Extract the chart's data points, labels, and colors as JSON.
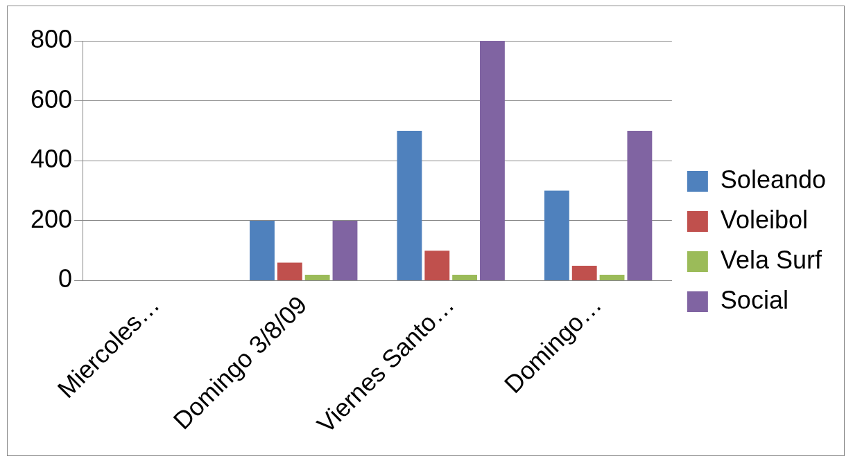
{
  "chart_data": {
    "type": "bar",
    "categories": [
      "Miercoles…",
      "Domingo 3/8/09",
      "Viernes Santo…",
      "Domingo…"
    ],
    "series": [
      {
        "name": "Soleando",
        "color": "#4f81bd",
        "values": [
          0,
          200,
          500,
          300
        ]
      },
      {
        "name": "Voleibol",
        "color": "#c0504d",
        "values": [
          0,
          60,
          100,
          50
        ]
      },
      {
        "name": "Vela Surf",
        "color": "#9bbb59",
        "values": [
          0,
          20,
          20,
          20
        ]
      },
      {
        "name": "Social",
        "color": "#8064a2",
        "values": [
          0,
          200,
          800,
          500
        ]
      }
    ],
    "ylim": [
      0,
      800
    ],
    "yticks": [
      0,
      200,
      400,
      600,
      800
    ],
    "grid": "y",
    "legend": "right"
  }
}
